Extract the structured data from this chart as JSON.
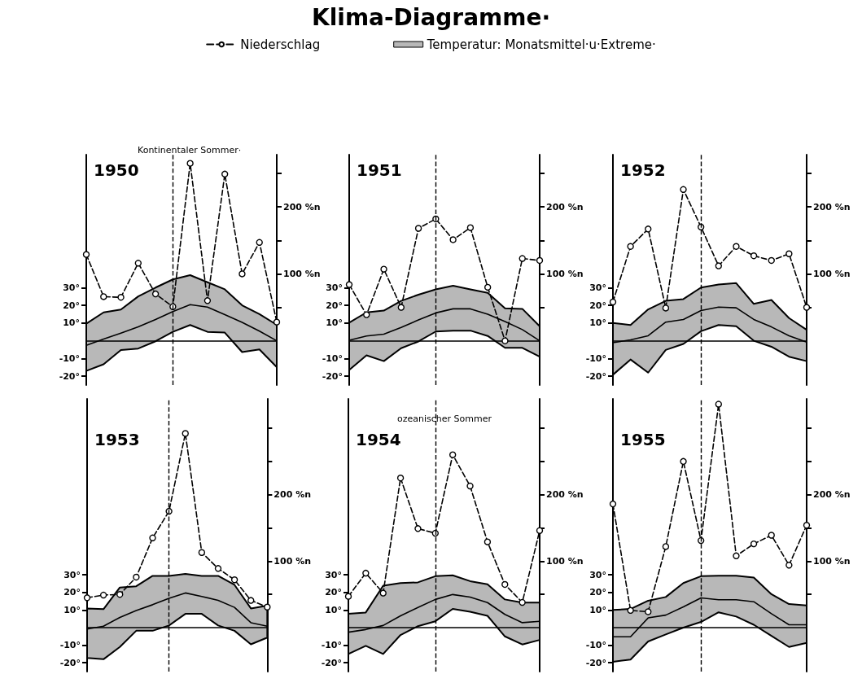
{
  "chart_data": [
    {
      "type": "other",
      "title": "Klima-Diagramme·"
    },
    {
      "type": "line",
      "title": "1950",
      "subtitle": "Kontinentaler Sommer·",
      "legend": "top",
      "categories": [
        null,
        null,
        null,
        null,
        null,
        null,
        null,
        null,
        null,
        null,
        null,
        null
      ],
      "ylim": [
        -25,
        105
      ],
      "yticks": [
        {
          "value": -20,
          "label": "-20°"
        },
        {
          "value": -10,
          "label": "-10°"
        },
        {
          "value": 10,
          "label": "10°"
        },
        {
          "value": 20,
          "label": "20°"
        },
        {
          "value": 30,
          "label": "30°"
        }
      ],
      "y2lim": [
        -66,
        278
      ],
      "y2ticks": [
        {
          "value": 50,
          "label": null
        },
        {
          "value": 100,
          "label": "100 %n"
        },
        {
          "value": 150,
          "label": null
        },
        {
          "value": 200,
          "label": "200 %n"
        },
        {
          "value": 250,
          "label": null
        }
      ],
      "series": [
        {
          "name": "Niederschlag",
          "type": "line",
          "axis": "y2",
          "color": "#000000",
          "marker": "circle",
          "line_style": "dashed",
          "values": [
            129,
            66,
            65,
            116,
            70,
            51,
            265,
            60,
            249,
            100,
            147,
            28
          ]
        },
        {
          "name": "Temperatur: Monatsmittel·u·Extreme·",
          "type": "line",
          "color": "#000000",
          "marker": "none",
          "line_style": "solid",
          "values": [
            -2.6,
            1,
            4.3,
            7.8,
            12,
            16.5,
            20.4,
            19,
            14.7,
            10.4,
            5.4,
            0
          ],
          "lower": [
            -17,
            -13.3,
            -5.2,
            -4.4,
            -0.3,
            5,
            8.9,
            5,
            4.6,
            -6.4,
            -4.9,
            -14.9
          ],
          "upper": [
            9.6,
            16,
            17.6,
            25,
            30,
            34.6,
            37,
            33,
            29,
            20,
            15,
            9
          ]
        }
      ]
    },
    {
      "type": "line",
      "title": "1951",
      "categories": [
        null,
        null,
        null,
        null,
        null,
        null,
        null,
        null,
        null,
        null,
        null,
        null
      ],
      "ylim": [
        -25,
        105
      ],
      "yticks": [
        {
          "value": -20,
          "label": "-20°"
        },
        {
          "value": -10,
          "label": "-10°"
        },
        {
          "value": 10,
          "label": "10°"
        },
        {
          "value": 20,
          "label": "20°"
        },
        {
          "value": 30,
          "label": "30°"
        }
      ],
      "y2lim": [
        -66,
        278
      ],
      "y2ticks": [
        {
          "value": 50,
          "label": null
        },
        {
          "value": 100,
          "label": "100 %n"
        },
        {
          "value": 150,
          "label": null
        },
        {
          "value": 200,
          "label": "200 %n"
        },
        {
          "value": 250,
          "label": null
        }
      ],
      "series": [
        {
          "type": "line",
          "axis": "y2",
          "color": "#000000",
          "marker": "circle",
          "line_style": "dashed",
          "values": [
            84,
            39,
            107,
            50,
            168,
            182,
            151,
            169,
            80,
            0,
            123,
            120
          ]
        },
        {
          "type": "line",
          "color": "#000000",
          "marker": "none",
          "line_style": "solid",
          "values": [
            0.3,
            2.7,
            3.7,
            7.5,
            11.7,
            15.7,
            18,
            18,
            15,
            10.8,
            6.3,
            0
          ],
          "lower": [
            -16.5,
            -8.2,
            -11.5,
            -4.2,
            -0.4,
            5.2,
            5.7,
            5.7,
            2.7,
            -4,
            -4,
            -9
          ],
          "upper": [
            10.2,
            16,
            17,
            22.5,
            26,
            29,
            31,
            29,
            27,
            18.3,
            18,
            8.2
          ]
        }
      ]
    },
    {
      "type": "line",
      "title": "1952",
      "categories": [
        null,
        null,
        null,
        null,
        null,
        null,
        null,
        null,
        null,
        null,
        null,
        null
      ],
      "ylim": [
        -25,
        105
      ],
      "yticks": [
        {
          "value": -20,
          "label": "-20°"
        },
        {
          "value": -10,
          "label": "-10°"
        },
        {
          "value": 10,
          "label": "10°"
        },
        {
          "value": 20,
          "label": "20°"
        },
        {
          "value": 30,
          "label": "30°"
        }
      ],
      "y2lim": [
        -66,
        278
      ],
      "y2ticks": [
        {
          "value": 50,
          "label": null
        },
        {
          "value": 100,
          "label": "100 %n"
        },
        {
          "value": 150,
          "label": null
        },
        {
          "value": 200,
          "label": "200 %n"
        },
        {
          "value": 250,
          "label": null
        }
      ],
      "series": [
        {
          "type": "line",
          "axis": "y2",
          "color": "#000000",
          "marker": "circle",
          "line_style": "dashed",
          "values": [
            58,
            141,
            167,
            49,
            226,
            170,
            112,
            141,
            127,
            120,
            130,
            50
          ]
        },
        {
          "type": "line",
          "color": "#000000",
          "marker": "none",
          "line_style": "solid",
          "values": [
            -1.1,
            0.5,
            2.8,
            10.5,
            12,
            17,
            19,
            18.6,
            12,
            7.8,
            2.8,
            -0.8
          ],
          "lower": [
            -19.2,
            -10.6,
            -18,
            -5.2,
            -1.8,
            5.4,
            8.9,
            8.2,
            0,
            -3.4,
            -9,
            -11.5
          ],
          "upper": [
            10,
            8.9,
            17.7,
            22.5,
            23.5,
            30,
            31.7,
            32.5,
            20.8,
            23,
            12.8,
            6.2
          ]
        }
      ]
    },
    {
      "type": "line",
      "title": "1953",
      "categories": [
        null,
        null,
        null,
        null,
        null,
        null,
        null,
        null,
        null,
        null,
        null,
        null
      ],
      "ylim": [
        -25,
        130
      ],
      "yticks": [
        {
          "value": -20,
          "label": "-20°"
        },
        {
          "value": -10,
          "label": "-10°"
        },
        {
          "value": 10,
          "label": "10°"
        },
        {
          "value": 20,
          "label": "20°"
        },
        {
          "value": 30,
          "label": "30°"
        }
      ],
      "y2lim": [
        -66,
        344
      ],
      "y2ticks": [
        {
          "value": 50,
          "label": null
        },
        {
          "value": 100,
          "label": "100 %n"
        },
        {
          "value": 150,
          "label": null
        },
        {
          "value": 200,
          "label": "200 %n"
        },
        {
          "value": 250,
          "label": null
        },
        {
          "value": 300,
          "label": null
        }
      ],
      "series": [
        {
          "type": "line",
          "axis": "y2",
          "color": "#000000",
          "marker": "circle",
          "line_style": "dashed",
          "values": [
            45,
            49,
            50,
            76,
            135,
            175,
            292,
            113,
            89,
            72,
            41,
            31
          ]
        },
        {
          "type": "line",
          "color": "#000000",
          "marker": "none",
          "line_style": "solid",
          "values": [
            -0.8,
            0.8,
            5.8,
            9.7,
            13,
            16.6,
            19.7,
            17.7,
            15.5,
            11.5,
            2.8,
            0.8
          ],
          "lower": [
            -17.2,
            -18,
            -11,
            -1.8,
            -1.8,
            1.2,
            7.8,
            7.8,
            1.2,
            -1.8,
            -9.5,
            -5.7
          ],
          "upper": [
            10.9,
            10.5,
            22.8,
            23.5,
            29.4,
            29.4,
            30.5,
            29.4,
            29.4,
            24.3,
            10.9,
            12.5
          ]
        }
      ]
    },
    {
      "type": "line",
      "title": "1954",
      "subtitle": "ozeanischer Sommer",
      "categories": [
        null,
        null,
        null,
        null,
        null,
        null,
        null,
        null,
        null,
        null,
        null,
        null
      ],
      "ylim": [
        -25,
        130
      ],
      "yticks": [
        {
          "value": -20,
          "label": "-20°"
        },
        {
          "value": -10,
          "label": "-10°"
        },
        {
          "value": 10,
          "label": "10°"
        },
        {
          "value": 20,
          "label": "20°"
        },
        {
          "value": 30,
          "label": "30°"
        }
      ],
      "y2lim": [
        -66,
        344
      ],
      "y2ticks": [
        {
          "value": 50,
          "label": null
        },
        {
          "value": 100,
          "label": "100 %n"
        },
        {
          "value": 150,
          "label": null
        },
        {
          "value": 200,
          "label": "200 %n"
        },
        {
          "value": 250,
          "label": null
        },
        {
          "value": 300,
          "label": null
        }
      ],
      "series": [
        {
          "type": "line",
          "axis": "y2",
          "color": "#000000",
          "marker": "circle",
          "line_style": "dashed",
          "values": [
            47,
            82,
            52,
            225,
            149,
            142,
            260,
            213,
            129,
            65,
            38,
            146
          ]
        },
        {
          "type": "line",
          "color": "#000000",
          "marker": "none",
          "line_style": "solid",
          "values": [
            -2.6,
            -1.1,
            1.2,
            6.7,
            11.4,
            16,
            18.8,
            17.3,
            14.2,
            7.5,
            2.8,
            3.6
          ],
          "lower": [
            -15,
            -10.4,
            -15,
            -4.2,
            0.8,
            3.6,
            10.6,
            9,
            6.7,
            -5,
            -9.6,
            -7
          ],
          "upper": [
            7.9,
            8.6,
            23.8,
            25.3,
            25.7,
            29.2,
            29.7,
            26.4,
            24.6,
            16,
            14.2,
            14.2
          ]
        }
      ]
    },
    {
      "type": "line",
      "title": "1955",
      "categories": [
        null,
        null,
        null,
        null,
        null,
        null,
        null,
        null,
        null,
        null,
        null,
        null
      ],
      "ylim": [
        -25,
        130
      ],
      "yticks": [
        {
          "value": -20,
          "label": "-20°"
        },
        {
          "value": -10,
          "label": "-10°"
        },
        {
          "value": 10,
          "label": "10°"
        },
        {
          "value": 20,
          "label": "20°"
        },
        {
          "value": 30,
          "label": "30°"
        }
      ],
      "y2lim": [
        -66,
        344
      ],
      "y2ticks": [
        {
          "value": 50,
          "label": null
        },
        {
          "value": 100,
          "label": "100 %n"
        },
        {
          "value": 150,
          "label": null
        },
        {
          "value": 200,
          "label": "200 %n"
        },
        {
          "value": 250,
          "label": null
        },
        {
          "value": 300,
          "label": null
        }
      ],
      "series": [
        {
          "type": "line",
          "axis": "y2",
          "color": "#000000",
          "marker": "circle",
          "line_style": "dashed",
          "values": [
            186,
            26,
            24,
            122,
            250,
            131,
            336,
            108,
            126,
            139,
            94,
            154
          ]
        },
        {
          "type": "line",
          "color": "#000000",
          "marker": "none",
          "line_style": "solid",
          "values": [
            -5.2,
            -5.2,
            5.5,
            7.1,
            11.8,
            16.9,
            15.8,
            15.8,
            14.7,
            7.9,
            1.6,
            1.6
          ],
          "lower": [
            -19.4,
            -18.2,
            -7.9,
            -3.9,
            0,
            3.2,
            8.7,
            6.3,
            1.6,
            -4.7,
            -11,
            -8.7
          ],
          "upper": [
            10,
            10.6,
            15.3,
            17.4,
            25.3,
            29.2,
            29.5,
            29.5,
            28.4,
            19,
            13.4,
            12.6
          ]
        }
      ]
    }
  ]
}
